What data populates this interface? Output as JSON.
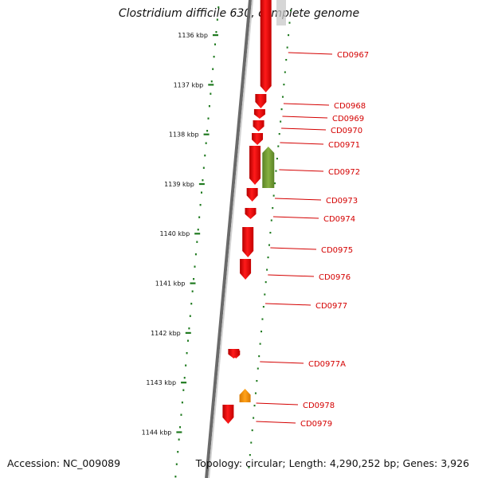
{
  "title": "Clostridium difficile 630, complete genome",
  "footer": {
    "accession": "Accession: NC_009089",
    "stats": "Topology: circular; Length: 4,290,252 bp; Genes: 3,926"
  },
  "colors": {
    "gene_red": "#ee0000",
    "gene_green": "#6e9a2e",
    "gene_orange": "#f08c00",
    "tick_green": "#1f7a1f",
    "label_red": "#d40000",
    "backbone_gray": "#808080"
  },
  "scale": {
    "unit": "kbp",
    "ticks": [
      "1136 kbp",
      "1137 kbp",
      "1138 kbp",
      "1139 kbp",
      "1140 kbp",
      "1141 kbp",
      "1142 kbp",
      "1143 kbp",
      "1144 kbp"
    ]
  },
  "genes": [
    {
      "label": "CD0967",
      "strand": "+",
      "color": "red"
    },
    {
      "label": "CD0968",
      "strand": "+",
      "color": "red"
    },
    {
      "label": "CD0969",
      "strand": "+",
      "color": "red"
    },
    {
      "label": "CD0970",
      "strand": "+",
      "color": "red"
    },
    {
      "label": "CD0971",
      "strand": "+",
      "color": "red"
    },
    {
      "label": "CD0972",
      "strand": "-",
      "color": "green"
    },
    {
      "label": "CD0973",
      "strand": "+",
      "color": "red"
    },
    {
      "label": "CD0974",
      "strand": "+",
      "color": "red"
    },
    {
      "label": "CD0975",
      "strand": "+",
      "color": "red"
    },
    {
      "label": "CD0976",
      "strand": "+",
      "color": "red"
    },
    {
      "label": "CD0977",
      "strand": "+",
      "color": "red"
    },
    {
      "label": "CD0977A",
      "strand": "+",
      "color": "red"
    },
    {
      "label": "CD0978",
      "strand": "+",
      "color": "red"
    },
    {
      "label": "CD0979",
      "strand": "-",
      "color": "orange"
    }
  ]
}
